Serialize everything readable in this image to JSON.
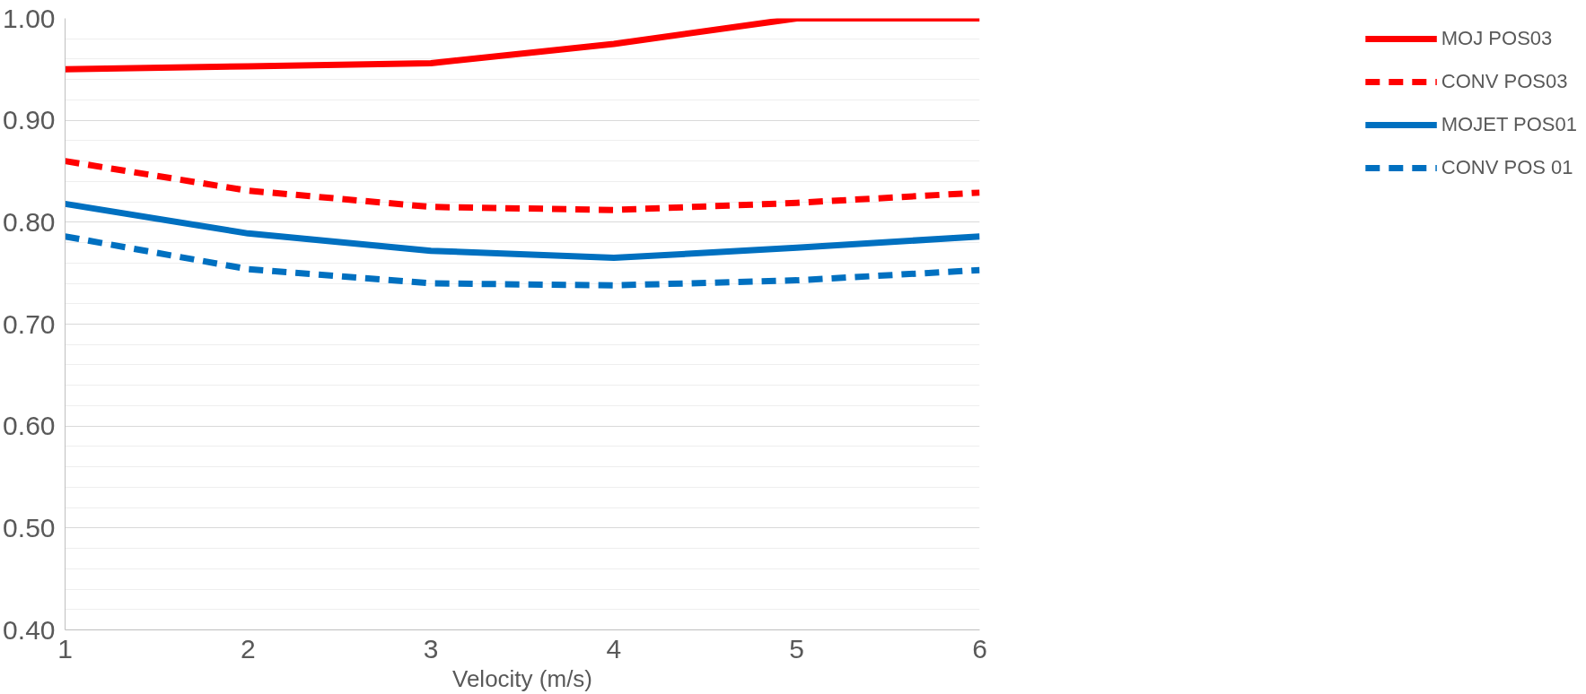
{
  "chart_data": {
    "type": "line",
    "xlabel": "Velocity (m/s)",
    "x": [
      1,
      2,
      3,
      4,
      5,
      6
    ],
    "xlim": [
      1,
      6
    ],
    "xticks": [
      1,
      2,
      3,
      4,
      5,
      6
    ],
    "ylim": [
      0.4,
      1.0
    ],
    "yticks": [
      {
        "value": 0.4,
        "label": "0.40"
      },
      {
        "value": 0.5,
        "label": "0.50"
      },
      {
        "value": 0.6,
        "label": "0.60"
      },
      {
        "value": 0.7,
        "label": "0.70"
      },
      {
        "value": 0.8,
        "label": "0.80"
      },
      {
        "value": 0.9,
        "label": "0.90"
      },
      {
        "value": 1.0,
        "label": "1.00"
      }
    ],
    "grid": "y",
    "legend": "right",
    "marker": "none",
    "series": [
      {
        "name": "MOJ POS03",
        "color": "#ff0000",
        "line_style": "solid",
        "values": [
          0.95,
          0.953,
          0.956,
          0.975,
          1.0,
          1.0
        ]
      },
      {
        "name": "CONV POS03",
        "color": "#ff0000",
        "line_style": "dashed",
        "values": [
          0.86,
          0.831,
          0.815,
          0.812,
          0.819,
          0.829
        ]
      },
      {
        "name": "MOJET POS01",
        "color": "#0070c0",
        "line_style": "solid",
        "values": [
          0.818,
          0.789,
          0.772,
          0.765,
          0.775,
          0.786
        ]
      },
      {
        "name": "CONV POS 01",
        "color": "#0070c0",
        "line_style": "dashed",
        "values": [
          0.786,
          0.754,
          0.74,
          0.738,
          0.743,
          0.753
        ]
      }
    ]
  }
}
